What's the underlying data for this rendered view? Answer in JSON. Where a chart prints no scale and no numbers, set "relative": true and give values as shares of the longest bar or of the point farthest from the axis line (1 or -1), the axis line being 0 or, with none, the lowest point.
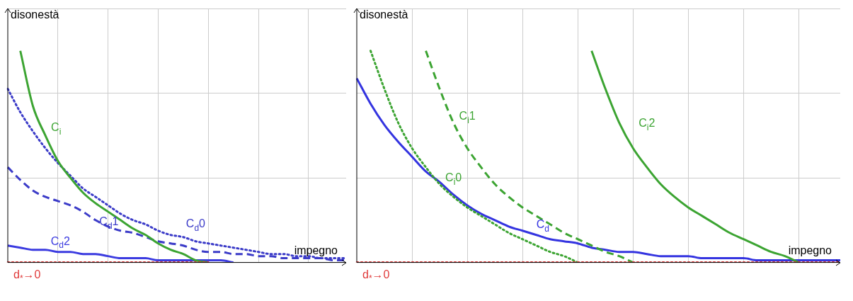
{
  "chart_data": [
    {
      "type": "line",
      "relative": true,
      "xlabel": "impegno",
      "ylabel": "disonestà",
      "grid": true,
      "categories": [
        null,
        null,
        null,
        null,
        null,
        null,
        null,
        null,
        null,
        null,
        null,
        null,
        null,
        null,
        null,
        null,
        null,
        null,
        null,
        null,
        null,
        null,
        null,
        null,
        null,
        null,
        null,
        null
      ],
      "series": [
        {
          "name": "C$_{i}$",
          "color": "#3ca432",
          "line_style": "solid",
          "values": [
            null,
            1.0,
            0.74,
            0.6,
            0.48,
            0.4,
            0.33,
            0.28,
            0.24,
            0.2,
            0.16,
            0.13,
            0.09,
            0.06,
            0.04,
            0.01,
            0,
            null,
            null,
            null,
            null,
            null,
            null,
            null,
            null,
            null,
            null,
            null
          ]
        },
        {
          "name": "C$_{d}$0",
          "color": "#3b3bc8",
          "line_style": "dotted",
          "values": [
            0.82,
            0.71,
            0.62,
            0.54,
            0.47,
            0.41,
            0.35,
            0.31,
            0.27,
            0.23,
            0.2,
            0.18,
            0.15,
            0.13,
            0.12,
            0.1,
            0.09,
            0.08,
            0.07,
            0.06,
            0.05,
            0.04,
            0.04,
            0.03,
            0.03,
            0.02,
            0.02,
            0.02
          ]
        },
        {
          "name": "C$_{d}$1",
          "color": "#3b3bc8",
          "line_style": "dashed",
          "values": [
            0.45,
            0.39,
            0.34,
            0.31,
            0.29,
            0.27,
            0.24,
            0.2,
            0.17,
            0.15,
            0.14,
            0.12,
            0.1,
            0.09,
            0.08,
            0.06,
            0.05,
            0.05,
            0.04,
            0.04,
            0.03,
            0.03,
            0.02,
            0.02,
            0.02,
            0.02,
            0.01,
            0.01
          ]
        },
        {
          "name": "C$_{d}$2",
          "color": "#3b3be0",
          "line_style": "solid",
          "values": [
            0.08,
            0.07,
            0.06,
            0.06,
            0.05,
            0.05,
            0.04,
            0.04,
            0.03,
            0.02,
            0.02,
            0.02,
            0.01,
            0.01,
            0.01,
            0.01,
            0.01,
            0.01,
            0,
            null,
            null,
            null,
            null,
            null,
            null,
            null,
            null,
            null
          ]
        },
        {
          "name": "d$_{*}$→0",
          "color": "#e03a3a",
          "line_style": "dotted",
          "values": [
            0,
            0,
            0,
            0,
            0,
            0,
            0,
            0,
            0,
            0,
            0,
            0,
            0,
            0,
            0,
            0,
            0,
            null,
            null,
            null,
            null,
            null,
            null,
            null,
            null,
            null,
            null,
            null
          ]
        }
      ]
    },
    {
      "type": "line",
      "relative": true,
      "xlabel": "impegno",
      "ylabel": "disonestà",
      "grid": true,
      "categories": [
        null,
        null,
        null,
        null,
        null,
        null,
        null,
        null,
        null,
        null,
        null,
        null,
        null,
        null,
        null,
        null,
        null,
        null,
        null,
        null,
        null,
        null,
        null,
        null,
        null,
        null,
        null,
        null,
        null,
        null,
        null,
        null,
        null,
        null,
        null,
        null
      ],
      "series": [
        {
          "name": "C$_{i}$0",
          "color": "#3ca432",
          "line_style": "dotted",
          "values": [
            null,
            1.0,
            0.82,
            0.66,
            0.54,
            0.45,
            0.37,
            0.31,
            0.26,
            0.22,
            0.18,
            0.14,
            0.11,
            0.08,
            0.05,
            0.03,
            0,
            null,
            null,
            null,
            null,
            null,
            null,
            null,
            null,
            null,
            null,
            null,
            null,
            null,
            null,
            null,
            null,
            null,
            null,
            null
          ]
        },
        {
          "name": "C$_{i}$1",
          "color": "#3ca432",
          "line_style": "dashed",
          "values": [
            null,
            null,
            null,
            null,
            null,
            1.0,
            0.82,
            0.66,
            0.54,
            0.45,
            0.37,
            0.31,
            0.26,
            0.22,
            0.18,
            0.14,
            0.11,
            0.08,
            0.05,
            0.03,
            0,
            null,
            null,
            null,
            null,
            null,
            null,
            null,
            null,
            null,
            null,
            null,
            null,
            null,
            null,
            null
          ]
        },
        {
          "name": "C$_{i}$2",
          "color": "#3ca432",
          "line_style": "solid",
          "values": [
            null,
            null,
            null,
            null,
            null,
            null,
            null,
            null,
            null,
            null,
            null,
            null,
            null,
            null,
            null,
            null,
            null,
            1.0,
            0.82,
            0.66,
            0.54,
            0.45,
            0.37,
            0.31,
            0.26,
            0.22,
            0.18,
            0.14,
            0.11,
            0.08,
            0.05,
            0.03,
            0,
            null,
            null,
            null
          ]
        },
        {
          "name": "C$_{d}$",
          "color": "#3434e0",
          "line_style": "solid",
          "values": [
            0.87,
            0.75,
            0.65,
            0.57,
            0.5,
            0.43,
            0.38,
            0.32,
            0.27,
            0.23,
            0.2,
            0.17,
            0.15,
            0.13,
            0.11,
            0.1,
            0.09,
            0.07,
            0.06,
            0.05,
            0.05,
            0.04,
            0.03,
            0.03,
            0.03,
            0.02,
            0.02,
            0.02,
            0.02,
            0.01,
            0.01,
            0.01,
            0.01,
            0.01,
            0.01,
            0.01
          ]
        },
        {
          "name": "d$_{*}$→0",
          "color": "#e03a3a",
          "line_style": "dotted",
          "values": [
            0,
            0,
            0,
            0,
            0,
            0,
            0,
            0,
            0,
            0,
            0,
            0,
            0,
            0,
            0,
            0,
            0,
            0,
            0,
            0,
            0,
            0,
            0,
            0,
            0,
            0,
            0,
            0,
            0,
            0,
            0,
            0,
            0,
            0,
            0,
            0
          ]
        }
      ]
    }
  ]
}
